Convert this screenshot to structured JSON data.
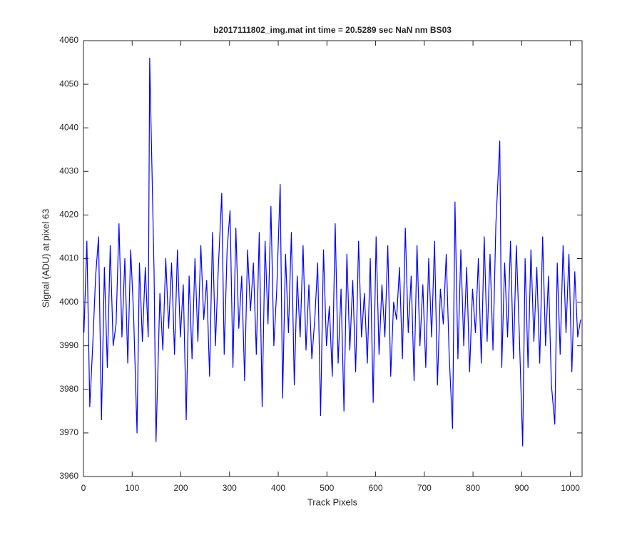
{
  "chart_data": {
    "type": "line",
    "title": "b2017111802_img.mat int time = 20.5289 sec  NaN nm BS03",
    "x_label": "Track Pixels",
    "y_label": "Signal (ADU) at pixel 63",
    "color": "#0000ff",
    "xlim": [
      0,
      1024
    ],
    "ylim": [
      3960,
      4060
    ],
    "xticks": [
      0,
      100,
      200,
      300,
      400,
      500,
      600,
      700,
      800,
      900,
      1000
    ],
    "yticks": [
      3960,
      3970,
      3980,
      3990,
      4000,
      4010,
      4020,
      4030,
      4040,
      4050,
      4060
    ],
    "x": [
      1,
      7,
      13,
      19,
      25,
      31,
      37,
      43,
      49,
      55,
      61,
      67,
      73,
      79,
      85,
      91,
      97,
      103,
      110,
      115,
      121,
      127,
      133,
      136,
      145,
      149,
      157,
      163,
      169,
      175,
      181,
      187,
      193,
      199,
      205,
      211,
      217,
      223,
      229,
      235,
      241,
      247,
      253,
      259,
      265,
      271,
      277,
      284,
      289,
      295,
      301,
      307,
      313,
      319,
      325,
      331,
      337,
      343,
      349,
      355,
      361,
      367,
      373,
      379,
      385,
      391,
      397,
      404,
      409,
      415,
      421,
      427,
      433,
      439,
      445,
      451,
      457,
      463,
      469,
      475,
      481,
      487,
      493,
      499,
      505,
      511,
      517,
      523,
      529,
      535,
      541,
      547,
      553,
      559,
      565,
      571,
      577,
      583,
      589,
      595,
      601,
      607,
      613,
      619,
      625,
      631,
      637,
      643,
      649,
      655,
      661,
      667,
      673,
      679,
      685,
      691,
      697,
      703,
      709,
      715,
      721,
      727,
      733,
      739,
      745,
      751,
      758,
      763,
      769,
      775,
      781,
      787,
      793,
      799,
      805,
      811,
      817,
      823,
      829,
      835,
      841,
      847,
      855,
      859,
      865,
      871,
      877,
      883,
      889,
      895,
      902,
      907,
      913,
      919,
      925,
      931,
      937,
      943,
      949,
      955,
      961,
      968,
      973,
      979,
      985,
      991,
      997,
      1003,
      1009,
      1015,
      1021
    ],
    "values": [
      3993,
      4014,
      3976,
      3990,
      4006,
      4015,
      3973,
      4008,
      3985,
      4013,
      3990,
      3995,
      4018,
      3992,
      4010,
      3986,
      4012,
      3997,
      3970,
      4009,
      3991,
      4008,
      3992,
      4056,
      4007,
      3968,
      4002,
      3989,
      4010,
      3994,
      4009,
      3988,
      4012,
      3992,
      4004,
      3973,
      4006,
      3987,
      4010,
      3991,
      4013,
      3996,
      4005,
      3983,
      4016,
      3990,
      4008,
      4025,
      3988,
      4012,
      4021,
      3985,
      4017,
      3994,
      4006,
      3982,
      4012,
      3998,
      4009,
      3988,
      4016,
      3976,
      4014,
      3995,
      4022,
      3990,
      4003,
      4027,
      3978,
      4011,
      3993,
      4016,
      3981,
      4006,
      3992,
      4013,
      3989,
      4004,
      3987,
      3996,
      4009,
      3974,
      4012,
      3990,
      3999,
      3983,
      4018,
      3986,
      4003,
      3975,
      4011,
      3989,
      4005,
      3984,
      4014,
      3992,
      4002,
      3986,
      4010,
      3977,
      4015,
      3988,
      4004,
      3992,
      4013,
      3983,
      4000,
      3996,
      4008,
      3987,
      4017,
      3993,
      4006,
      3982,
      4013,
      3990,
      4004,
      3985,
      4010,
      3992,
      4014,
      3981,
      4003,
      3995,
      4011,
      3988,
      3971,
      4023,
      3987,
      4012,
      3990,
      4008,
      3984,
      4003,
      3993,
      4010,
      3986,
      4015,
      3991,
      4011,
      3989,
      4018,
      4037,
      3985,
      4009,
      3992,
      4014,
      3987,
      4013,
      3993,
      3967,
      4010,
      3985,
      4012,
      3991,
      4008,
      3986,
      4015,
      3990,
      4006,
      3981,
      3972,
      4009,
      3988,
      4013,
      3993,
      4011,
      3984,
      4007,
      3992,
      3996
    ]
  }
}
